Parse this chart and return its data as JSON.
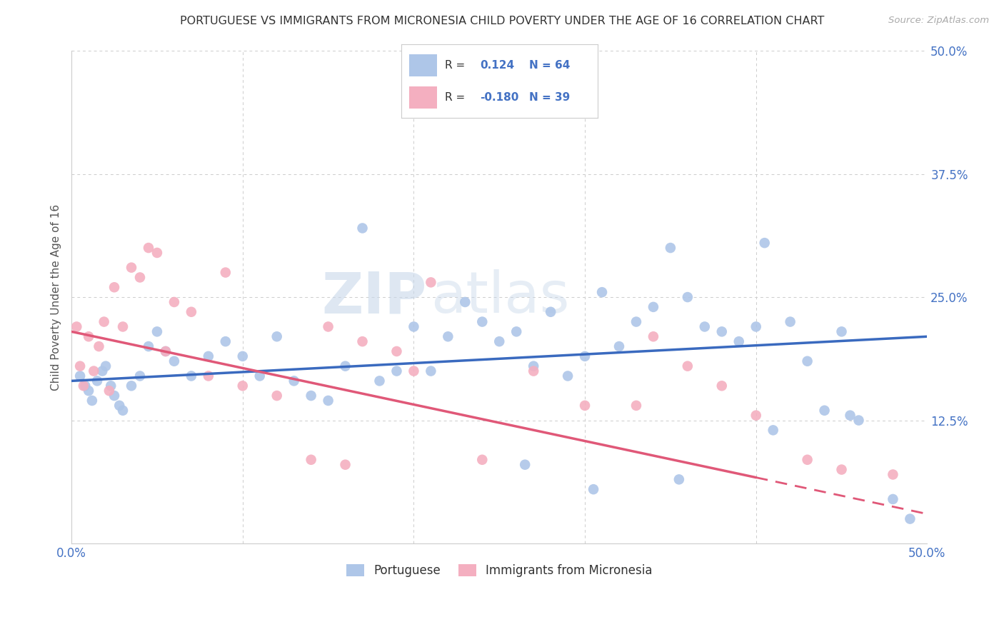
{
  "title": "PORTUGUESE VS IMMIGRANTS FROM MICRONESIA CHILD POVERTY UNDER THE AGE OF 16 CORRELATION CHART",
  "source": "Source: ZipAtlas.com",
  "ylabel": "Child Poverty Under the Age of 16",
  "ytick_labels": [
    "",
    "12.5%",
    "25.0%",
    "37.5%",
    "50.0%"
  ],
  "ytick_values": [
    0,
    12.5,
    25.0,
    37.5,
    50.0
  ],
  "xlim": [
    0,
    50
  ],
  "ylim": [
    0,
    50
  ],
  "r_portuguese": 0.124,
  "n_portuguese": 64,
  "r_micronesia": -0.18,
  "n_micronesia": 39,
  "portuguese_color": "#aec6e8",
  "micronesia_color": "#f4afc0",
  "portuguese_line_color": "#3a6abf",
  "micronesia_line_color": "#e05878",
  "watermark_zip": "ZIP",
  "watermark_atlas": "atlas",
  "background_color": "#ffffff",
  "grid_color": "#cccccc",
  "portuguese_x": [
    0.5,
    0.8,
    1.0,
    1.2,
    1.5,
    1.8,
    2.0,
    2.3,
    2.5,
    2.8,
    3.0,
    3.5,
    4.0,
    4.5,
    5.0,
    5.5,
    6.0,
    7.0,
    8.0,
    9.0,
    10.0,
    11.0,
    12.0,
    13.0,
    14.0,
    15.0,
    16.0,
    17.0,
    18.0,
    19.0,
    20.0,
    21.0,
    22.0,
    23.0,
    24.0,
    25.0,
    26.0,
    27.0,
    28.0,
    29.0,
    30.0,
    31.0,
    32.0,
    33.0,
    34.0,
    35.0,
    36.0,
    37.0,
    38.0,
    39.0,
    40.0,
    41.0,
    42.0,
    43.0,
    44.0,
    45.0,
    46.0,
    48.0,
    49.0,
    40.5,
    35.5,
    26.5,
    30.5,
    45.5
  ],
  "portuguese_y": [
    17.0,
    16.0,
    15.5,
    14.5,
    16.5,
    17.5,
    18.0,
    16.0,
    15.0,
    14.0,
    13.5,
    16.0,
    17.0,
    20.0,
    21.5,
    19.5,
    18.5,
    17.0,
    19.0,
    20.5,
    19.0,
    17.0,
    21.0,
    16.5,
    15.0,
    14.5,
    18.0,
    32.0,
    16.5,
    17.5,
    22.0,
    17.5,
    21.0,
    24.5,
    22.5,
    20.5,
    21.5,
    18.0,
    23.5,
    17.0,
    19.0,
    25.5,
    20.0,
    22.5,
    24.0,
    30.0,
    25.0,
    22.0,
    21.5,
    20.5,
    22.0,
    11.5,
    22.5,
    18.5,
    13.5,
    21.5,
    12.5,
    4.5,
    2.5,
    30.5,
    6.5,
    8.0,
    5.5,
    13.0
  ],
  "micronesia_x": [
    0.3,
    0.5,
    0.7,
    1.0,
    1.3,
    1.6,
    1.9,
    2.2,
    2.5,
    3.0,
    3.5,
    4.0,
    4.5,
    5.0,
    5.5,
    6.0,
    7.0,
    8.0,
    9.0,
    10.0,
    12.0,
    14.0,
    15.0,
    16.0,
    17.0,
    19.0,
    20.0,
    21.0,
    24.0,
    27.0,
    30.0,
    33.0,
    34.0,
    36.0,
    38.0,
    40.0,
    43.0,
    45.0,
    48.0
  ],
  "micronesia_y": [
    22.0,
    18.0,
    16.0,
    21.0,
    17.5,
    20.0,
    22.5,
    15.5,
    26.0,
    22.0,
    28.0,
    27.0,
    30.0,
    29.5,
    19.5,
    24.5,
    23.5,
    17.0,
    27.5,
    16.0,
    15.0,
    8.5,
    22.0,
    8.0,
    20.5,
    19.5,
    17.5,
    26.5,
    8.5,
    17.5,
    14.0,
    14.0,
    21.0,
    18.0,
    16.0,
    13.0,
    8.5,
    7.5,
    7.0
  ],
  "port_line_x0": 0,
  "port_line_y0": 16.5,
  "port_line_x1": 50,
  "port_line_y1": 21.0,
  "micr_line_x0": 0,
  "micr_line_y0": 21.5,
  "micr_line_x1": 50,
  "micr_line_y1": 3.0,
  "micr_solid_end_x": 40
}
